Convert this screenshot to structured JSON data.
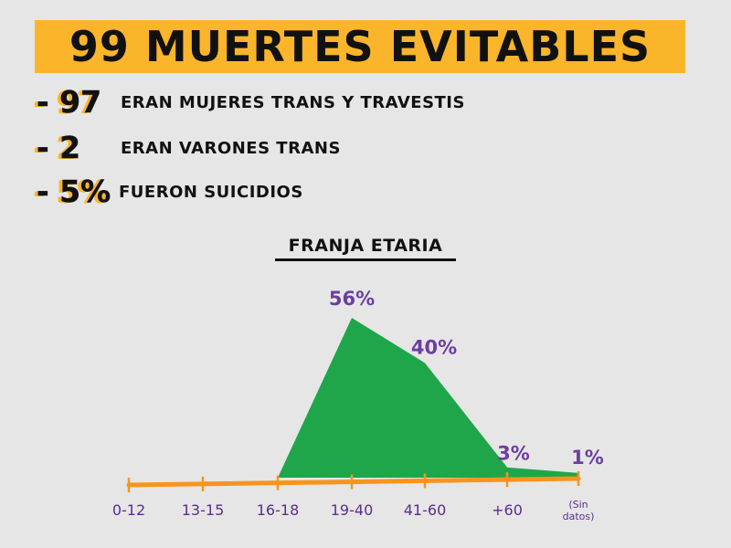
{
  "header": {
    "title": "99 MUERTES EVITABLES"
  },
  "stats": [
    {
      "value": "- 97",
      "label": "ERAN MUJERES TRANS Y TRAVESTIS"
    },
    {
      "value": "- 2",
      "label": "ERAN VARONES TRANS"
    },
    {
      "value": "- 5%",
      "label": "FUERON SUICIDIOS"
    }
  ],
  "colors": {
    "banner": "#fbb52b",
    "area": "#1fa64a",
    "axis": "#f7941d",
    "labels": "#6b3fa0",
    "background": "#e6e6e6"
  },
  "chart_data": {
    "type": "area",
    "title": "FRANJA ETARIA",
    "categories": [
      "0-12",
      "13-15",
      "16-18",
      "19-40",
      "41-60",
      "+60",
      "(Sin datos)"
    ],
    "values": [
      0,
      0,
      0,
      56,
      40,
      3,
      1
    ],
    "data_labels": [
      "",
      "",
      "",
      "56%",
      "40%",
      "3%",
      "1%"
    ],
    "unit": "%",
    "ylim": [
      0,
      56
    ],
    "grid": false,
    "legend": "none"
  }
}
